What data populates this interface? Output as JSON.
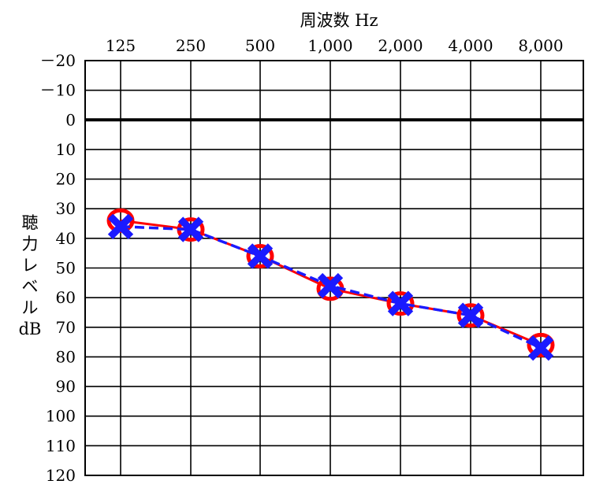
{
  "chart_data": {
    "type": "line",
    "title": "",
    "xlabel": "周波数 Hz",
    "ylabel": [
      "聴",
      "力",
      "レ",
      "ベ",
      "ル",
      "dB"
    ],
    "categories": [
      "125",
      "250",
      "500",
      "1,000",
      "2,000",
      "4,000",
      "8,000"
    ],
    "y_ticks": [
      "－20",
      "－10",
      "0",
      "10",
      "20",
      "30",
      "40",
      "50",
      "60",
      "70",
      "80",
      "90",
      "100",
      "110",
      "120"
    ],
    "ylim": [
      -20,
      120
    ],
    "y_inverted": true,
    "grid": true,
    "series": [
      {
        "marker": "circle",
        "color": "#ff0000",
        "line_style": "solid",
        "values": [
          34,
          37,
          46,
          57,
          62,
          66,
          76
        ]
      },
      {
        "marker": "cross",
        "color": "#1a1aff",
        "line_style": "dashed",
        "values": [
          36,
          37,
          46,
          56,
          62,
          66,
          77
        ]
      }
    ]
  }
}
